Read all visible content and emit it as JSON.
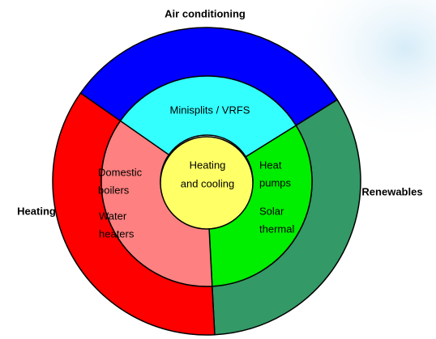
{
  "outer_ring": [
    {
      "label": "Air conditioning",
      "color": "#0000ff"
    },
    {
      "label": "Renewables",
      "color": "#339966"
    },
    {
      "label": "Heating",
      "color": "#ff0000"
    }
  ],
  "inner_ring": [
    {
      "color": "#33ffff",
      "items": [
        [
          "Minisplits / VRFS"
        ]
      ]
    },
    {
      "color": "#00ee00",
      "items": [
        [
          "Heat",
          "pumps"
        ],
        [
          "Solar",
          "thermal"
        ]
      ]
    },
    {
      "color": "#ff8080",
      "items": [
        [
          "Domestic",
          "boilers"
        ],
        [
          "Water",
          "heaters"
        ]
      ]
    }
  ],
  "center": {
    "lines": [
      "Heating",
      "and cooling"
    ],
    "color": "#ffff66"
  }
}
